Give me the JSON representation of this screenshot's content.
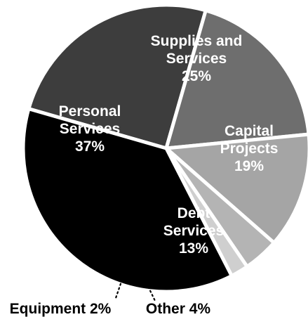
{
  "chart_data": {
    "type": "pie",
    "title": "",
    "slices": [
      {
        "name_lines": [
          "Supplies and",
          "Services"
        ],
        "pct_label": "25%",
        "value": 25,
        "color": "#3d3d3d"
      },
      {
        "name_lines": [
          "Capital",
          "Projects"
        ],
        "pct_label": "19%",
        "value": 19,
        "color": "#6e6e6e"
      },
      {
        "name_lines": [
          "Debt",
          "Services"
        ],
        "pct_label": "13%",
        "value": 13,
        "color": "#a5a5a5"
      },
      {
        "name_lines": [
          "Other 4%"
        ],
        "pct_label": "",
        "value": 4,
        "color": "#b4b4b4"
      },
      {
        "name_lines": [
          "Equipment 2%"
        ],
        "pct_label": "",
        "value": 2,
        "color": "#cfcfcf"
      },
      {
        "name_lines": [
          "Personal",
          "Services"
        ],
        "pct_label": "37%",
        "value": 37,
        "color": "#000000"
      }
    ]
  }
}
